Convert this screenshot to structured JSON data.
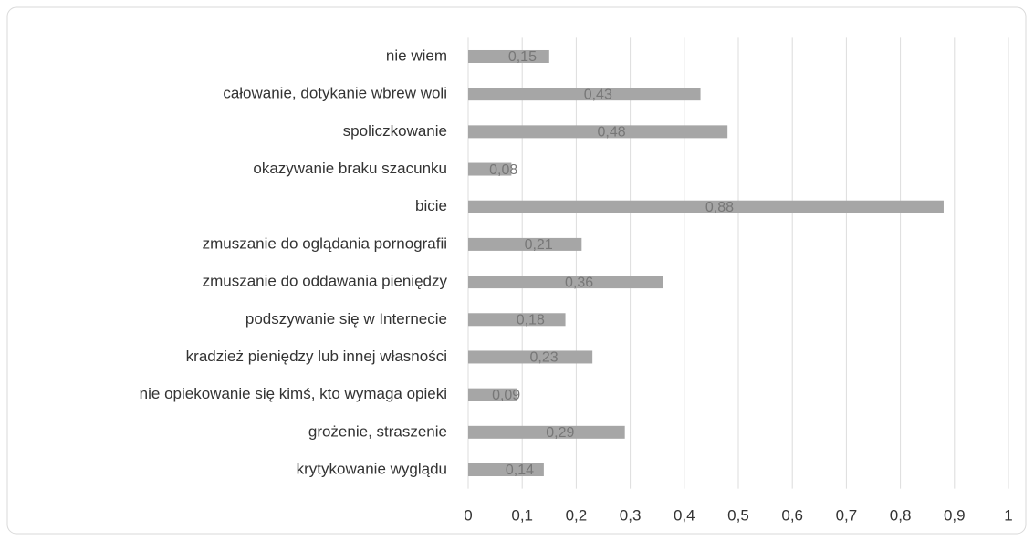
{
  "chart_data": {
    "type": "barh",
    "categories": [
      "nie wiem",
      "całowanie, dotykanie wbrew woli",
      "spoliczkowanie",
      "okazywanie braku szacunku",
      "bicie",
      "zmuszanie do oglądania pornografii",
      "zmuszanie do oddawania pieniędzy",
      "podszywanie się w Internecie",
      "kradzież pieniędzy lub innej własności",
      "nie opiekowanie się kimś, kto wymaga opieki",
      "grożenie, straszenie",
      "krytykowanie wyglądu"
    ],
    "values": [
      0.15,
      0.43,
      0.48,
      0.08,
      0.88,
      0.21,
      0.36,
      0.18,
      0.23,
      0.09,
      0.29,
      0.14
    ],
    "value_labels": [
      "0,15",
      "0,43",
      "0,48",
      "0,08",
      "0,88",
      "0,21",
      "0,36",
      "0,18",
      "0,23",
      "0,09",
      "0,29",
      "0,14"
    ],
    "color": "#a6a6a6",
    "xlim": [
      0,
      1
    ],
    "xticks": [
      0,
      {
        "value": 0.1,
        "label": "0,1"
      },
      {
        "value": 0.2,
        "label": "0,2"
      },
      {
        "value": 0.3,
        "label": "0,3"
      },
      {
        "value": 0.4,
        "label": "0,4"
      },
      {
        "value": 0.5,
        "label": "0,5"
      },
      {
        "value": 0.6,
        "label": "0,6"
      },
      {
        "value": 0.7,
        "label": "0,7"
      },
      {
        "value": 0.8,
        "label": "0,8"
      },
      {
        "value": 0.9,
        "label": "0,9"
      },
      1
    ],
    "grid": true
  }
}
